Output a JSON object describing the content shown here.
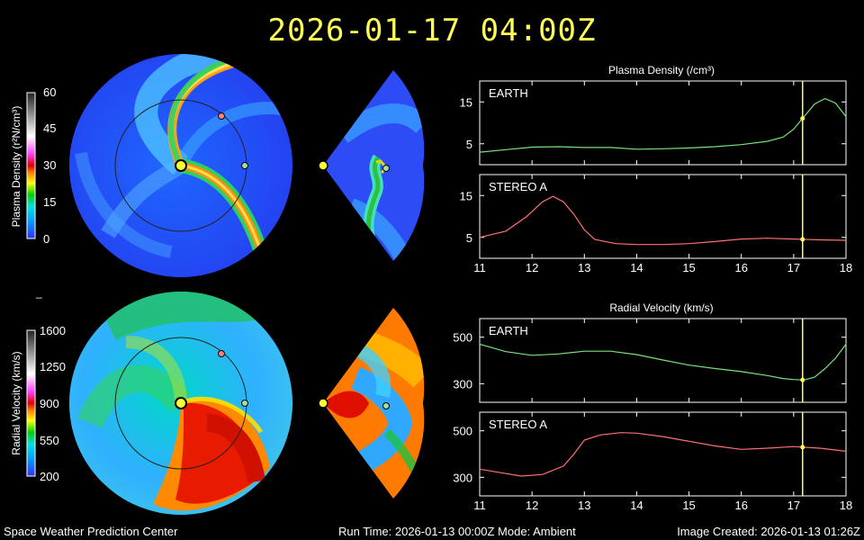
{
  "title": "2026-01-17  04:00Z",
  "footer": {
    "left": "Space Weather Prediction Center",
    "mid": "Run Time: 2026-01-13 00:00Z  Mode: Ambient",
    "right": "Image Created: 2026-01-13 01:26Z"
  },
  "colorbars": {
    "density": {
      "label": "Plasma Density (r²N/cm³)",
      "ticks": [
        "60",
        "45",
        "30",
        "15",
        "0"
      ]
    },
    "velocity": {
      "label": "Radial Velocity (km/s)",
      "ticks": [
        "1600",
        "1250",
        "900",
        "550",
        "200"
      ]
    }
  },
  "colors": {
    "earth": "#7de07d",
    "stereo": "#ff7070",
    "marker": "#ffff55",
    "title": "#ffff55"
  },
  "chart_data": [
    {
      "type": "line",
      "title": "Plasma Density (/cm³)",
      "panel": "EARTH",
      "x": [
        11,
        11.5,
        12,
        12.5,
        13,
        13.5,
        14,
        14.5,
        15,
        15.5,
        16,
        16.5,
        16.8,
        17,
        17.2,
        17.4,
        17.6,
        17.8,
        18
      ],
      "y": [
        3,
        3.6,
        4.2,
        4.3,
        4.1,
        4.1,
        3.7,
        3.8,
        4,
        4.3,
        4.8,
        5.6,
        6.6,
        8.5,
        11.5,
        14.5,
        15.8,
        14.7,
        11.5
      ],
      "xlim": [
        11,
        18
      ],
      "ylim": [
        0,
        20
      ],
      "yticks": [
        5,
        15
      ],
      "current_x": 17.17,
      "color": "#7de07d"
    },
    {
      "type": "line",
      "panel": "STEREO A",
      "x": [
        11,
        11.5,
        11.9,
        12.2,
        12.4,
        12.6,
        12.8,
        13,
        13.2,
        13.6,
        14,
        14.5,
        15,
        15.5,
        16,
        16.5,
        17,
        17.5,
        18
      ],
      "y": [
        5,
        6.5,
        10,
        13.5,
        14.8,
        13.5,
        10.5,
        6.8,
        4.5,
        3.5,
        3.3,
        3.3,
        3.5,
        4,
        4.6,
        4.8,
        4.6,
        4.4,
        4.3
      ],
      "xlim": [
        11,
        18
      ],
      "ylim": [
        0,
        20
      ],
      "yticks": [
        5,
        15
      ],
      "current_x": 17.17,
      "color": "#ff7070",
      "xticks": [
        11,
        12,
        13,
        14,
        15,
        16,
        17,
        18
      ]
    },
    {
      "type": "line",
      "title": "Radial Velocity (km/s)",
      "panel": "EARTH",
      "x": [
        11,
        11.5,
        12,
        12.5,
        13,
        13.5,
        14,
        14.5,
        15,
        15.5,
        16,
        16.5,
        16.8,
        17,
        17.2,
        17.4,
        17.6,
        17.8,
        18
      ],
      "y": [
        470,
        438,
        422,
        428,
        440,
        440,
        425,
        402,
        380,
        365,
        352,
        335,
        322,
        318,
        316,
        328,
        365,
        410,
        470
      ],
      "xlim": [
        11,
        18
      ],
      "ylim": [
        220,
        580
      ],
      "yticks": [
        300,
        500
      ],
      "current_x": 17.17,
      "color": "#7de07d"
    },
    {
      "type": "line",
      "panel": "STEREO A",
      "x": [
        11,
        11.4,
        11.8,
        12.2,
        12.6,
        12.8,
        13,
        13.3,
        13.7,
        14,
        14.5,
        15,
        15.5,
        16,
        16.5,
        17,
        17.5,
        18
      ],
      "y": [
        335,
        320,
        305,
        312,
        348,
        400,
        460,
        482,
        492,
        490,
        475,
        455,
        435,
        420,
        425,
        432,
        425,
        412
      ],
      "xlim": [
        11,
        18
      ],
      "ylim": [
        220,
        580
      ],
      "yticks": [
        300,
        500
      ],
      "current_x": 17.17,
      "color": "#ff7070",
      "xticks": [
        11,
        12,
        13,
        14,
        15,
        16,
        17,
        18
      ]
    }
  ]
}
